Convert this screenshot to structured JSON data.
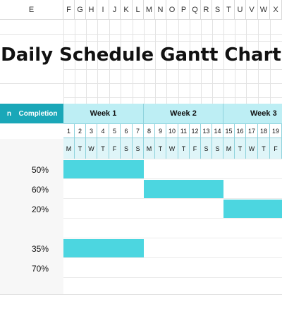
{
  "columns": {
    "e": "E",
    "f": "F",
    "g": "G",
    "h": "H",
    "i": "I",
    "j": "J",
    "k": "K",
    "l": "L",
    "m": "M",
    "n": "N",
    "o": "O",
    "p": "P",
    "q": "Q",
    "r": "R",
    "s": "S",
    "t": "T",
    "u": "U",
    "v": "V",
    "w": "W",
    "x": "X"
  },
  "title": "Daily Schedule Gantt Chart",
  "headers": {
    "partial": "n",
    "completion": "Completion"
  },
  "weeks": [
    "Week 1",
    "Week 2",
    "Week 3"
  ],
  "day_numbers": [
    "1",
    "2",
    "3",
    "4",
    "5",
    "6",
    "7",
    "8",
    "9",
    "10",
    "11",
    "12",
    "13",
    "14",
    "15",
    "16",
    "17",
    "18",
    "19"
  ],
  "day_letters": [
    "M",
    "T",
    "W",
    "T",
    "F",
    "S",
    "S",
    "M",
    "T",
    "W",
    "T",
    "F",
    "S",
    "S",
    "M",
    "T",
    "W",
    "T",
    "F"
  ],
  "tasks": [
    {
      "completion": "50%",
      "start_day": 1,
      "duration_days": 7
    },
    {
      "completion": "60%",
      "start_day": 8,
      "duration_days": 7
    },
    {
      "completion": "20%",
      "start_day": 15,
      "duration_days": 5
    },
    {
      "completion": "",
      "start_day": null,
      "duration_days": 0
    },
    {
      "completion": "35%",
      "start_day": 1,
      "duration_days": 7
    },
    {
      "completion": "70%",
      "start_day": null,
      "duration_days": 0
    }
  ],
  "colors": {
    "header_teal": "#1aa7b8",
    "week_header_bg": "#bdeef4",
    "bar": "#4cd6e0"
  }
}
